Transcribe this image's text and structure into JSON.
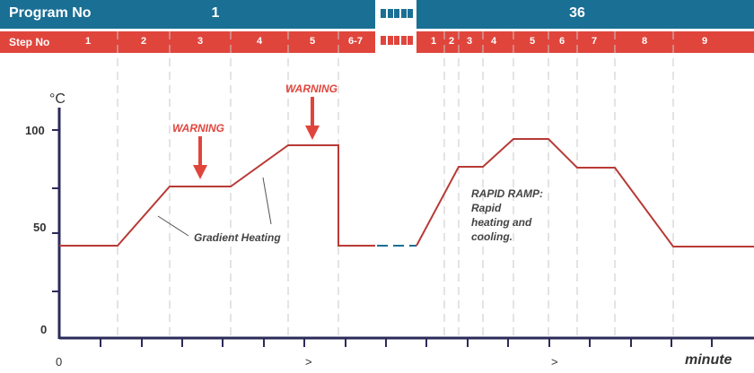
{
  "header": {
    "program_label": "Program No",
    "step_label": "Step No",
    "programs": [
      "1",
      "36"
    ],
    "steps_program1": [
      "1",
      "2",
      "3",
      "4",
      "5",
      "6-7"
    ],
    "steps_program36": [
      "1",
      "2",
      "3",
      "4",
      "5",
      "6",
      "7",
      "8",
      "9"
    ]
  },
  "axes": {
    "y_unit": "°C",
    "y_ticks": [
      "100",
      "50",
      "0"
    ],
    "x_ticks": [
      "0",
      ">",
      ">"
    ],
    "x_unit": "minute"
  },
  "annotations": {
    "warning_1": "WARNING",
    "warning_2": "WARNING",
    "gradient": "Gradient Heating",
    "rapid_lines": [
      "RAPID RAMP:",
      "Rapid",
      "heating and",
      "cooling."
    ]
  },
  "colors": {
    "program_band": "#1a6f94",
    "step_band": "#e0453c",
    "curve": "#b83a36",
    "warning": "#e0453c"
  }
}
